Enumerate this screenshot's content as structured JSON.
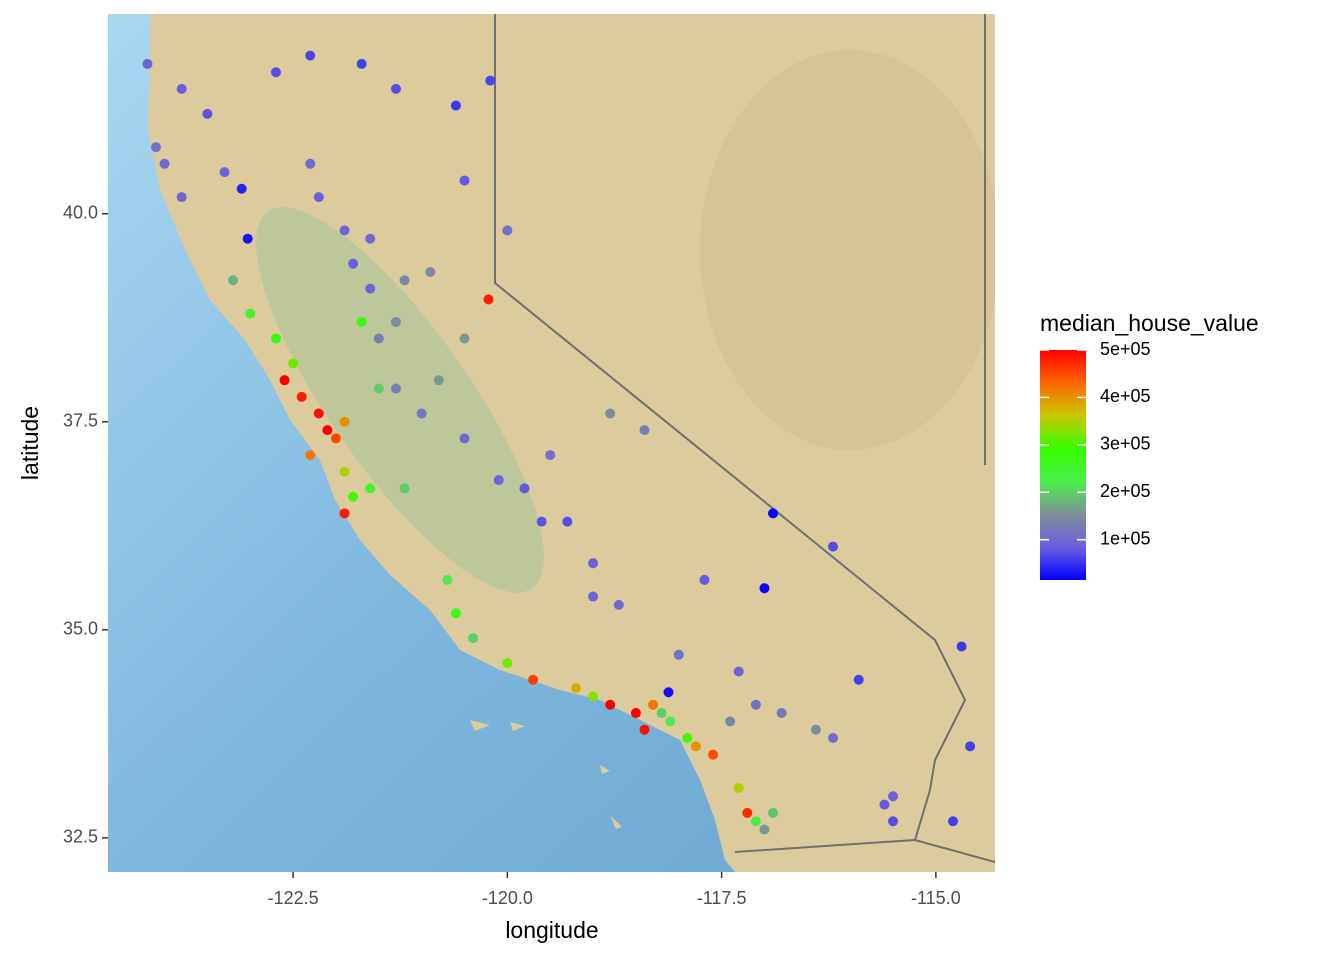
{
  "chart_data": {
    "type": "scatter",
    "x_label": "longitude",
    "y_label": "latitude",
    "xlim": [
      -124.66,
      -114.31
    ],
    "ylim": [
      32.09,
      42.4
    ],
    "xticks": [
      -122.5,
      {
        "value": -120,
        "label": "-120.0"
      },
      -117.5,
      {
        "value": -115,
        "label": "-115.0"
      }
    ],
    "yticks": [
      32.5,
      {
        "value": 35,
        "label": "35.0"
      },
      37.5,
      {
        "value": 40,
        "label": "40.0"
      }
    ],
    "colorbar": {
      "title": "median_house_value",
      "limits": [
        14999,
        500001
      ],
      "ticks": [
        {
          "value": 100000,
          "label": "1e+05"
        },
        {
          "value": 200000,
          "label": "2e+05"
        },
        {
          "value": 300000,
          "label": "3e+05"
        },
        {
          "value": 400000,
          "label": "4e+05"
        },
        {
          "value": 500000,
          "label": "5e+05"
        }
      ],
      "colors": [
        "#0000ff",
        "#6b5fe0",
        "#7f8f9a",
        "#4cef4c",
        "#33ff00",
        "#c8c800",
        "#ff6600",
        "#ff0000"
      ]
    },
    "x": [
      -124.2,
      -123.8,
      -123.5,
      -122.7,
      -122.3,
      -121.7,
      -121.3,
      -120.6,
      -120.2,
      -124.1,
      -124.0,
      -123.8,
      -123.3,
      -123.1,
      -122.3,
      -122.2,
      -121.9,
      -121.6,
      -121.8,
      -121.6,
      -121.2,
      -120.9,
      -120.5,
      -120.0,
      -120.22,
      -120.5,
      -123.03,
      -123.2,
      -123.0,
      -122.7,
      -122.5,
      -122.6,
      -122.4,
      -122.2,
      -122.1,
      -122.0,
      -121.9,
      -122.3,
      -121.9,
      -121.8,
      -121.9,
      -121.6,
      -121.2,
      -121.5,
      -121.3,
      -121.0,
      -120.8,
      -121.5,
      -121.3,
      -121.7,
      -120.5,
      -120.1,
      -119.8,
      -119.6,
      -119.3,
      -119.0,
      -119.0,
      -118.7,
      -119.5,
      -118.8,
      -118.4,
      -120.7,
      -120.6,
      -120.4,
      -120.0,
      -119.7,
      -119.2,
      -119.0,
      -118.8,
      -118.5,
      -118.4,
      -118.3,
      -118.2,
      -118.1,
      -117.9,
      -117.8,
      -117.6,
      -117.3,
      -117.2,
      -117.1,
      -117.0,
      -116.9,
      -117.4,
      -117.1,
      -116.8,
      -116.4,
      -116.2,
      -115.6,
      -115.5,
      -114.6,
      -114.7,
      -116.2,
      -116.9,
      -117.0,
      -118.12,
      -117.7,
      -118.0,
      -117.3,
      -115.5,
      -114.8,
      -115.9
    ],
    "y": [
      41.8,
      41.5,
      41.2,
      41.7,
      41.9,
      41.8,
      41.5,
      41.3,
      41.6,
      40.8,
      40.6,
      40.2,
      40.5,
      40.3,
      40.6,
      40.2,
      39.8,
      39.7,
      39.4,
      39.1,
      39.2,
      39.3,
      40.4,
      39.8,
      38.97,
      38.5,
      39.7,
      39.2,
      38.8,
      38.5,
      38.2,
      38.0,
      37.8,
      37.6,
      37.4,
      37.3,
      37.5,
      37.1,
      36.9,
      36.6,
      36.4,
      36.7,
      36.7,
      37.9,
      37.9,
      37.6,
      38.0,
      38.5,
      38.7,
      38.7,
      37.3,
      36.8,
      36.7,
      36.3,
      36.3,
      35.8,
      35.4,
      35.3,
      37.1,
      37.6,
      37.4,
      35.6,
      35.2,
      34.9,
      34.6,
      34.4,
      34.3,
      34.2,
      34.1,
      34.0,
      33.8,
      34.1,
      34.0,
      33.9,
      33.7,
      33.6,
      33.5,
      33.1,
      32.8,
      32.7,
      32.6,
      32.8,
      33.9,
      34.1,
      34.0,
      33.8,
      33.7,
      32.9,
      32.7,
      33.6,
      34.8,
      36.0,
      36.4,
      35.5,
      34.25,
      35.6,
      34.7,
      34.5,
      33.0,
      32.7,
      34.4
    ],
    "values": [
      90000,
      85000,
      75000,
      70000,
      65000,
      60000,
      70000,
      55000,
      65000,
      110000,
      100000,
      95000,
      90000,
      40000,
      100000,
      85000,
      90000,
      100000,
      85000,
      95000,
      140000,
      150000,
      80000,
      110000,
      480000,
      160000,
      30000,
      180000,
      250000,
      280000,
      320000,
      500000,
      480000,
      490000,
      500000,
      450000,
      400000,
      420000,
      350000,
      300000,
      480000,
      250000,
      200000,
      200000,
      130000,
      120000,
      160000,
      130000,
      150000,
      280000,
      100000,
      90000,
      80000,
      75000,
      70000,
      85000,
      95000,
      100000,
      110000,
      150000,
      130000,
      220000,
      270000,
      200000,
      320000,
      460000,
      380000,
      330000,
      500000,
      500000,
      490000,
      420000,
      200000,
      220000,
      300000,
      400000,
      450000,
      350000,
      470000,
      220000,
      160000,
      190000,
      140000,
      110000,
      120000,
      150000,
      100000,
      80000,
      70000,
      60000,
      55000,
      70000,
      20000,
      20000,
      25000,
      80000,
      110000,
      90000,
      90000,
      60000,
      60000
    ]
  }
}
